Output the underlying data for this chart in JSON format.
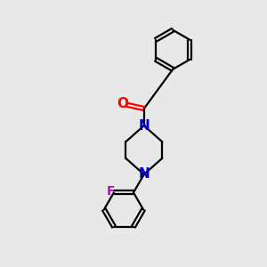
{
  "bg_color": "#e8e8e8",
  "bond_color": "#000000",
  "N_color": "#0000cc",
  "O_color": "#ff0000",
  "F_color": "#cc00cc",
  "line_width": 1.6,
  "font_size": 10,
  "figsize": [
    3.0,
    3.0
  ],
  "dpi": 100,
  "xlim": [
    0,
    10
  ],
  "ylim": [
    0,
    10
  ]
}
